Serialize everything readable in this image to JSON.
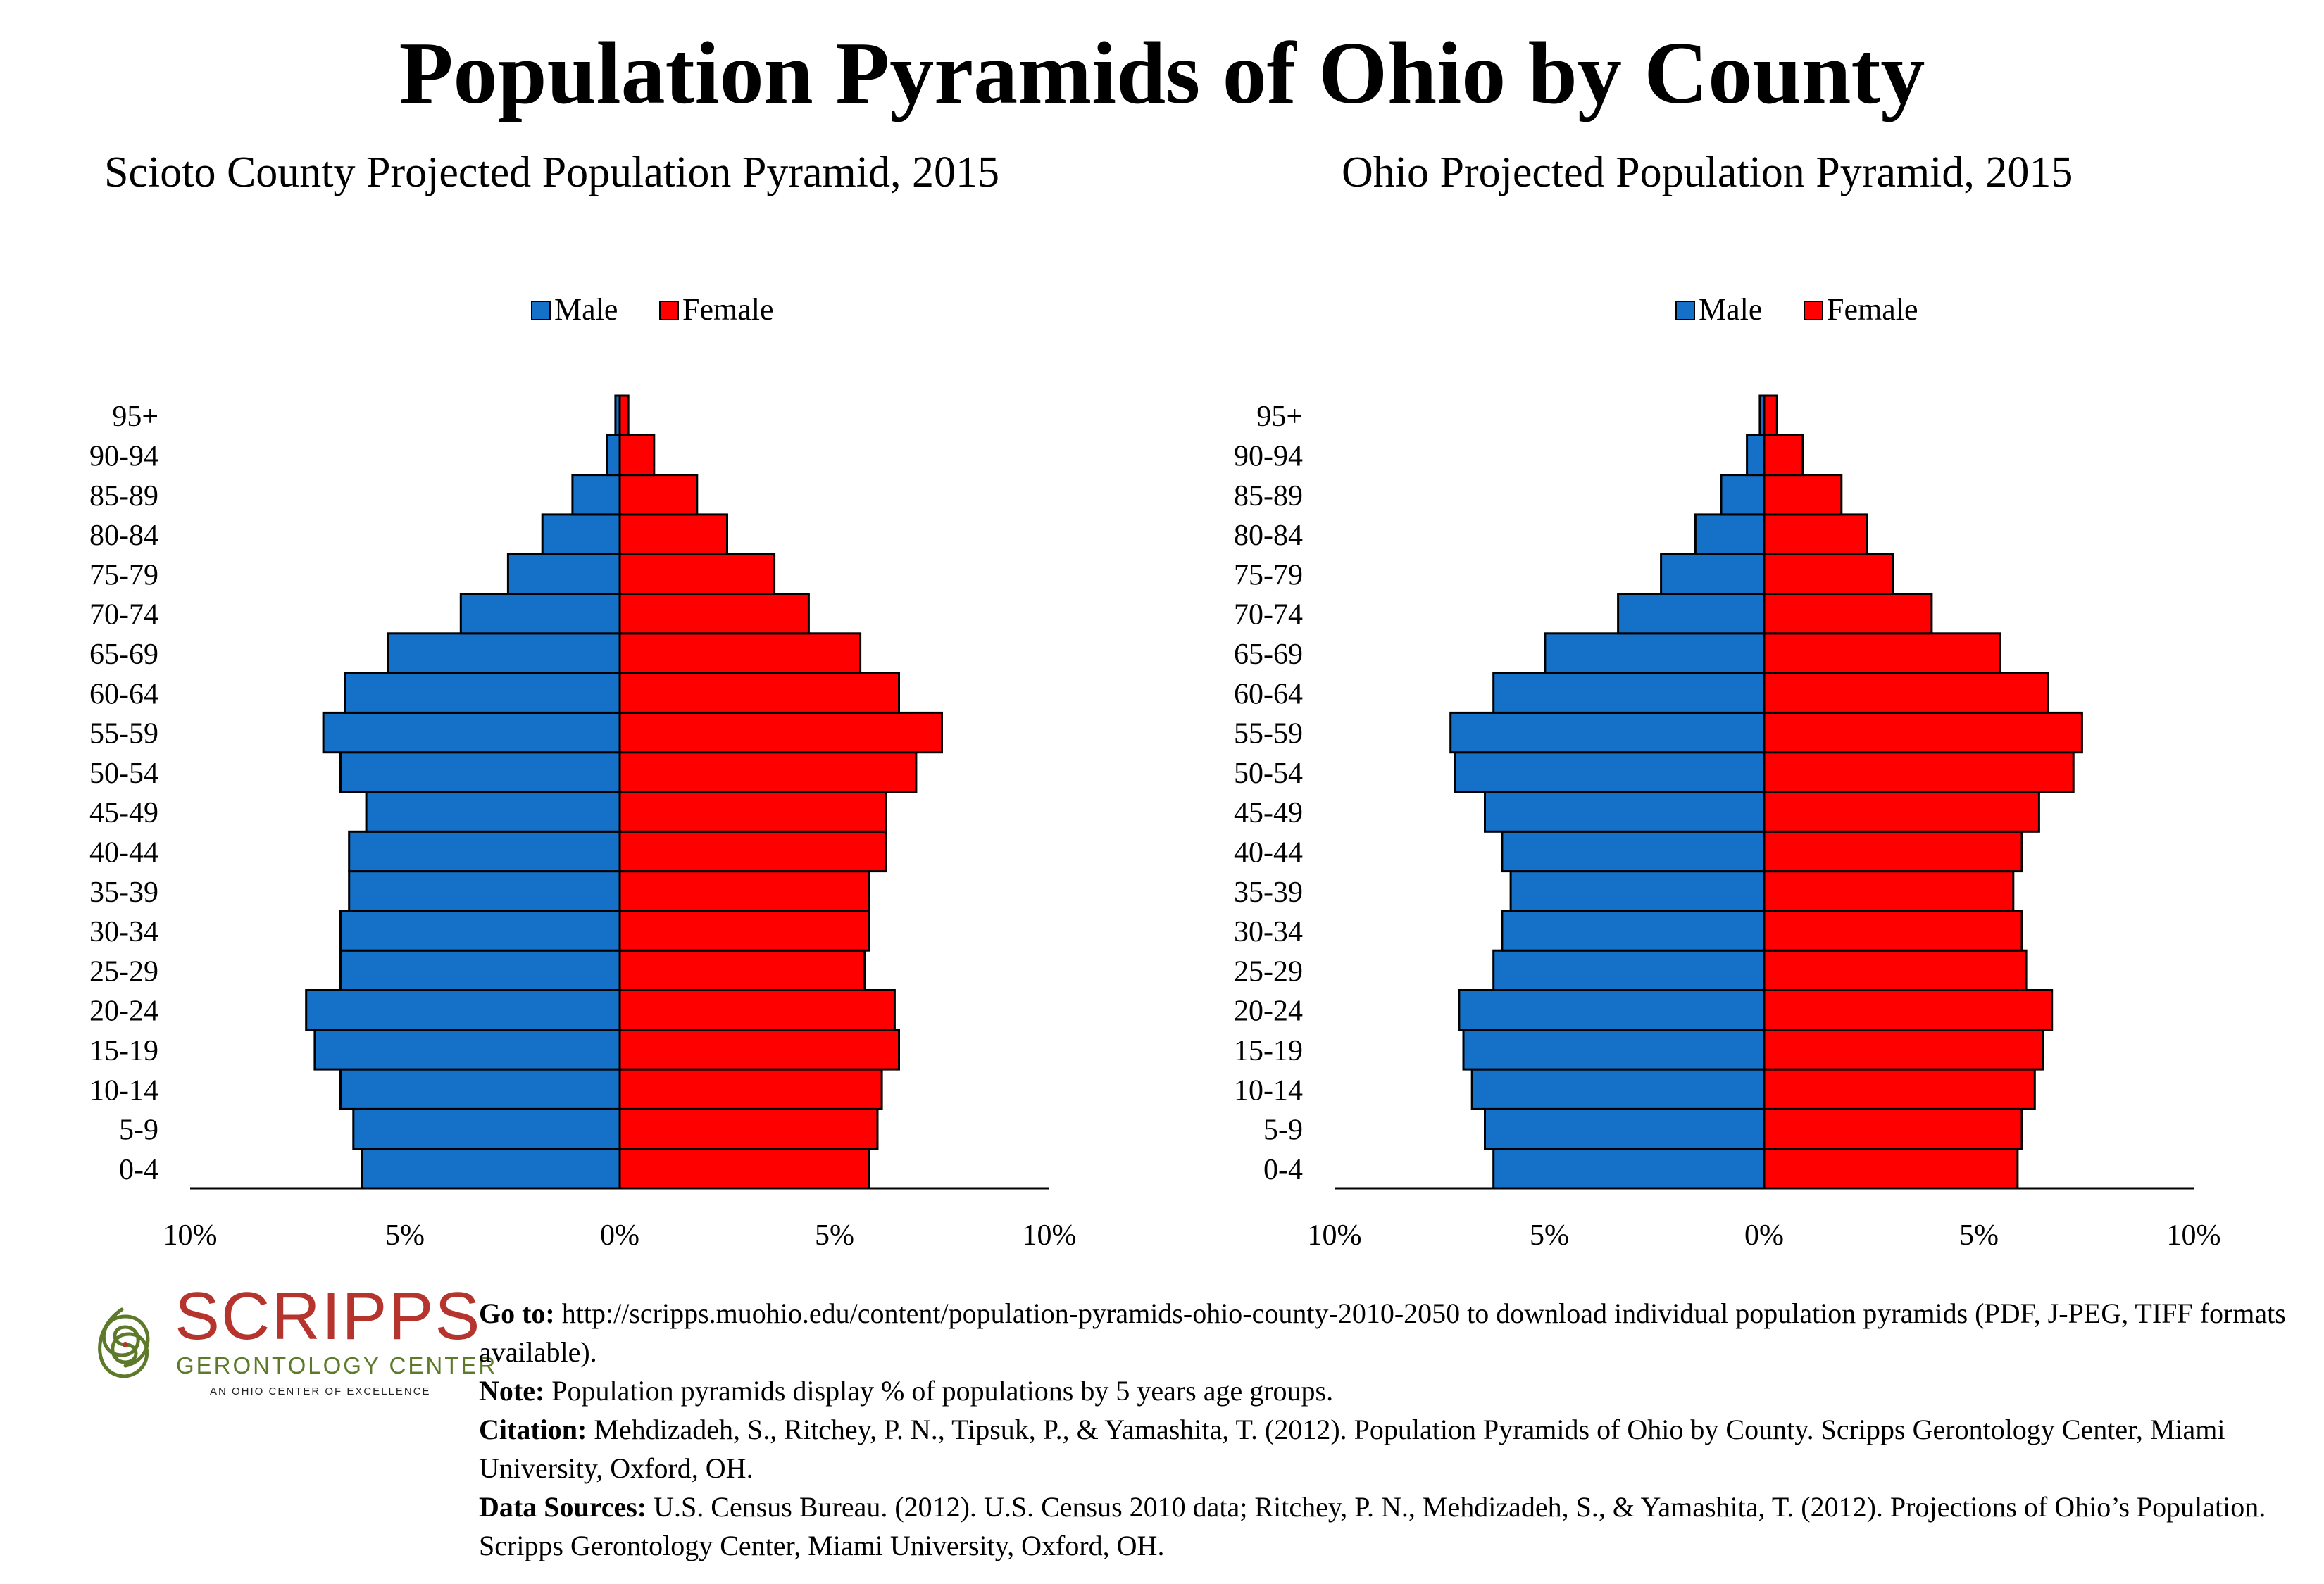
{
  "main_title": "Population Pyramids of Ohio by County",
  "colors": {
    "male": "#1570c8",
    "female": "#ff0000",
    "outline": "#000000"
  },
  "logo": {
    "word": "SCRIPPS",
    "subtitle": "GERONTOLOGY CENTER",
    "tagline": "AN OHIO CENTER OF EXCELLENCE"
  },
  "footer": {
    "goto_label": "Go to:",
    "goto_text": "http://scripps.muohio.edu/content/population-pyramids-ohio-county-2010-2050 to download individual population pyramids (PDF, J-PEG, TIFF formats available).",
    "note_label": "Note:",
    "note_text": "Population pyramids display % of populations by 5 years age groups.",
    "citation_label": "Citation:",
    "citation_text": "Mehdizadeh, S., Ritchey, P. N., Tipsuk, P., & Yamashita, T. (2012). Population Pyramids of Ohio by County. Scripps Gerontology Center, Miami University, Oxford, OH.",
    "sources_label": "Data Sources:",
    "sources_text": "U.S. Census Bureau. (2012). U.S. Census 2010 data; Ritchey, P. N., Mehdizadeh, S., & Yamashita, T. (2012). Projections of Ohio’s Population. Scripps Gerontology Center, Miami University, Oxford, OH."
  },
  "chart_data": [
    {
      "type": "bar",
      "orientation": "horizontal-pyramid",
      "title": "Scioto County Projected Population Pyramid, 2015",
      "legend": [
        "Male",
        "Female"
      ],
      "legend_position": "top-center",
      "categories": [
        "0-4",
        "5-9",
        "10-14",
        "15-19",
        "20-24",
        "25-29",
        "30-34",
        "35-39",
        "40-44",
        "45-49",
        "50-54",
        "55-59",
        "60-64",
        "65-69",
        "70-74",
        "75-79",
        "80-84",
        "85-89",
        "90-94",
        "95+"
      ],
      "series": [
        {
          "name": "Male",
          "values": [
            6.0,
            6.2,
            6.5,
            7.1,
            7.3,
            6.5,
            6.5,
            6.3,
            6.3,
            5.9,
            6.5,
            6.9,
            6.4,
            5.4,
            3.7,
            2.6,
            1.8,
            1.1,
            0.3,
            0.1
          ]
        },
        {
          "name": "Female",
          "values": [
            5.8,
            6.0,
            6.1,
            6.5,
            6.4,
            5.7,
            5.8,
            5.8,
            6.2,
            6.2,
            6.9,
            7.5,
            6.5,
            5.6,
            4.4,
            3.6,
            2.5,
            1.8,
            0.8,
            0.2
          ]
        }
      ],
      "x_ticks": [
        "10%",
        "5%",
        "0%",
        "5%",
        "10%"
      ],
      "xlim": [
        -10,
        10
      ],
      "grid": false
    },
    {
      "type": "bar",
      "orientation": "horizontal-pyramid",
      "title": "Ohio Projected Population Pyramid, 2015",
      "legend": [
        "Male",
        "Female"
      ],
      "legend_position": "top-center",
      "categories": [
        "0-4",
        "5-9",
        "10-14",
        "15-19",
        "20-24",
        "25-29",
        "30-34",
        "35-39",
        "40-44",
        "45-49",
        "50-54",
        "55-59",
        "60-64",
        "65-69",
        "70-74",
        "75-79",
        "80-84",
        "85-89",
        "90-94",
        "95+"
      ],
      "series": [
        {
          "name": "Male",
          "values": [
            6.3,
            6.5,
            6.8,
            7.0,
            7.1,
            6.3,
            6.1,
            5.9,
            6.1,
            6.5,
            7.2,
            7.3,
            6.3,
            5.1,
            3.4,
            2.4,
            1.6,
            1.0,
            0.4,
            0.1
          ]
        },
        {
          "name": "Female",
          "values": [
            5.9,
            6.0,
            6.3,
            6.5,
            6.7,
            6.1,
            6.0,
            5.8,
            6.0,
            6.4,
            7.2,
            7.4,
            6.6,
            5.5,
            3.9,
            3.0,
            2.4,
            1.8,
            0.9,
            0.3
          ]
        }
      ],
      "x_ticks": [
        "10%",
        "5%",
        "0%",
        "5%",
        "10%"
      ],
      "xlim": [
        -10,
        10
      ],
      "grid": false
    }
  ]
}
